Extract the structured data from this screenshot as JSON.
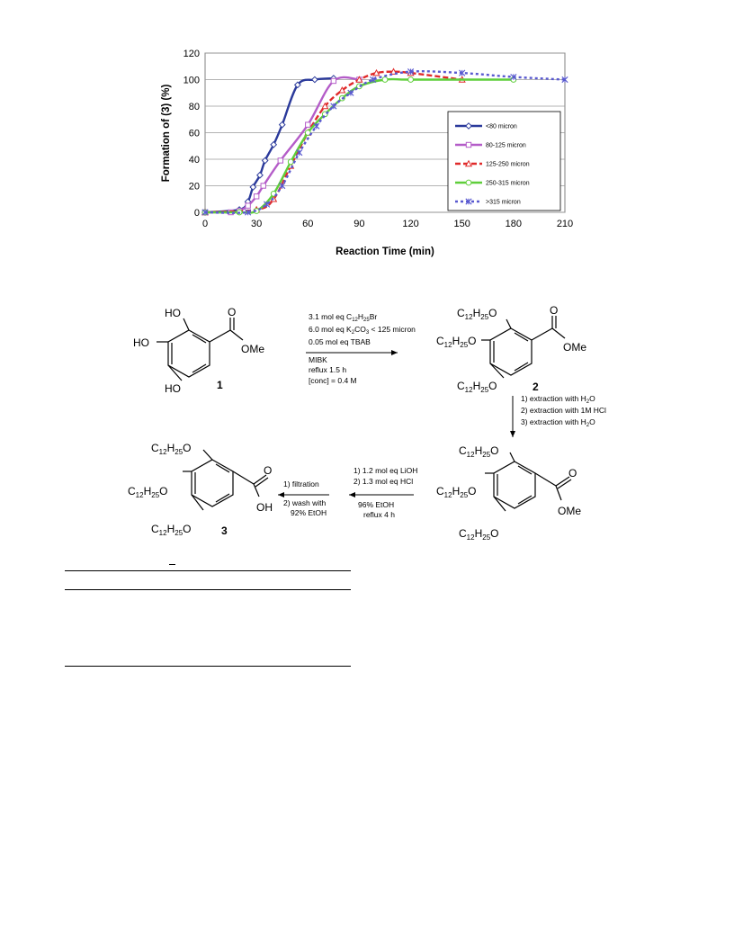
{
  "chart_data": {
    "type": "line",
    "xlabel": "Reaction Time (min)",
    "ylabel": "Formation of (3) (%)",
    "xlim": [
      0,
      210
    ],
    "ylim": [
      0,
      120
    ],
    "xticks": [
      "0",
      "30",
      "60",
      "90",
      "120",
      "150",
      "180",
      "210"
    ],
    "yticks": [
      "0",
      "20",
      "40",
      "60",
      "80",
      "100",
      "120"
    ],
    "grid": true,
    "legend": "right",
    "series": [
      {
        "name": "<80 micron",
        "color": "#2b3a9b",
        "marker": "diamond",
        "dash": "solid",
        "x": [
          0,
          20,
          25,
          28,
          32,
          35,
          40,
          45,
          54,
          64,
          75
        ],
        "y": [
          0,
          2,
          8,
          19,
          28,
          39,
          51,
          66,
          96,
          100,
          101
        ]
      },
      {
        "name": "80-125 micron",
        "color": "#b45cc8",
        "marker": "square",
        "dash": "solid",
        "x": [
          0,
          15,
          20,
          25,
          30,
          34,
          44,
          60,
          75,
          90
        ],
        "y": [
          0,
          0,
          1,
          5,
          12,
          20,
          39,
          66,
          99,
          100
        ]
      },
      {
        "name": "125-250 micron",
        "color": "#e02a2a",
        "marker": "triangle",
        "dash": "dashed",
        "x": [
          0,
          30,
          40,
          50,
          60,
          70,
          80,
          90,
          100,
          110,
          120,
          150
        ],
        "y": [
          0,
          2,
          10,
          35,
          60,
          80,
          92,
          100,
          105,
          106,
          105,
          100
        ]
      },
      {
        "name": "250-315 micron",
        "color": "#5fce3a",
        "marker": "circle",
        "dash": "solid",
        "x": [
          0,
          20,
          30,
          40,
          50,
          60,
          70,
          80,
          90,
          105,
          120,
          180
        ],
        "y": [
          0,
          0,
          1,
          14,
          38,
          60,
          74,
          86,
          95,
          100,
          100,
          100
        ]
      },
      {
        "name": ">315 micron",
        "color": "#5a5ad0",
        "marker": "x",
        "dash": "dotted",
        "x": [
          0,
          25,
          36,
          45,
          55,
          65,
          75,
          85,
          98,
          120,
          150,
          180,
          210
        ],
        "y": [
          0,
          0,
          6,
          20,
          45,
          65,
          80,
          90,
          100,
          106,
          105,
          102,
          100
        ]
      }
    ]
  },
  "scheme": {
    "compound_labels": [
      "1",
      "2",
      "3"
    ],
    "subst_chain": "C12H25O",
    "ho": "HO",
    "ome": "OMe",
    "oh": "OH",
    "o": "O",
    "step1": [
      "3.1 mol eq C12H25Br",
      "6.0 mol eq K2CO3 < 125 micron",
      "0.05 mol eq TBAB",
      "MIBK",
      "reflux 1.5 h",
      "[conc] = 0.4 M"
    ],
    "step2": [
      "1) extraction with H2O",
      "2) extraction with 1M HCl",
      "3) extraction with H2O"
    ],
    "step3_above": [
      "1) 1.2 mol eq LiOH",
      "2) 1.3 mol eq HCl"
    ],
    "step3_below": [
      "96% EtOH",
      "reflux 4 h"
    ],
    "step4_above": "1) filtration",
    "step4_below": [
      "2) wash with",
      "92% EtOH"
    ]
  }
}
